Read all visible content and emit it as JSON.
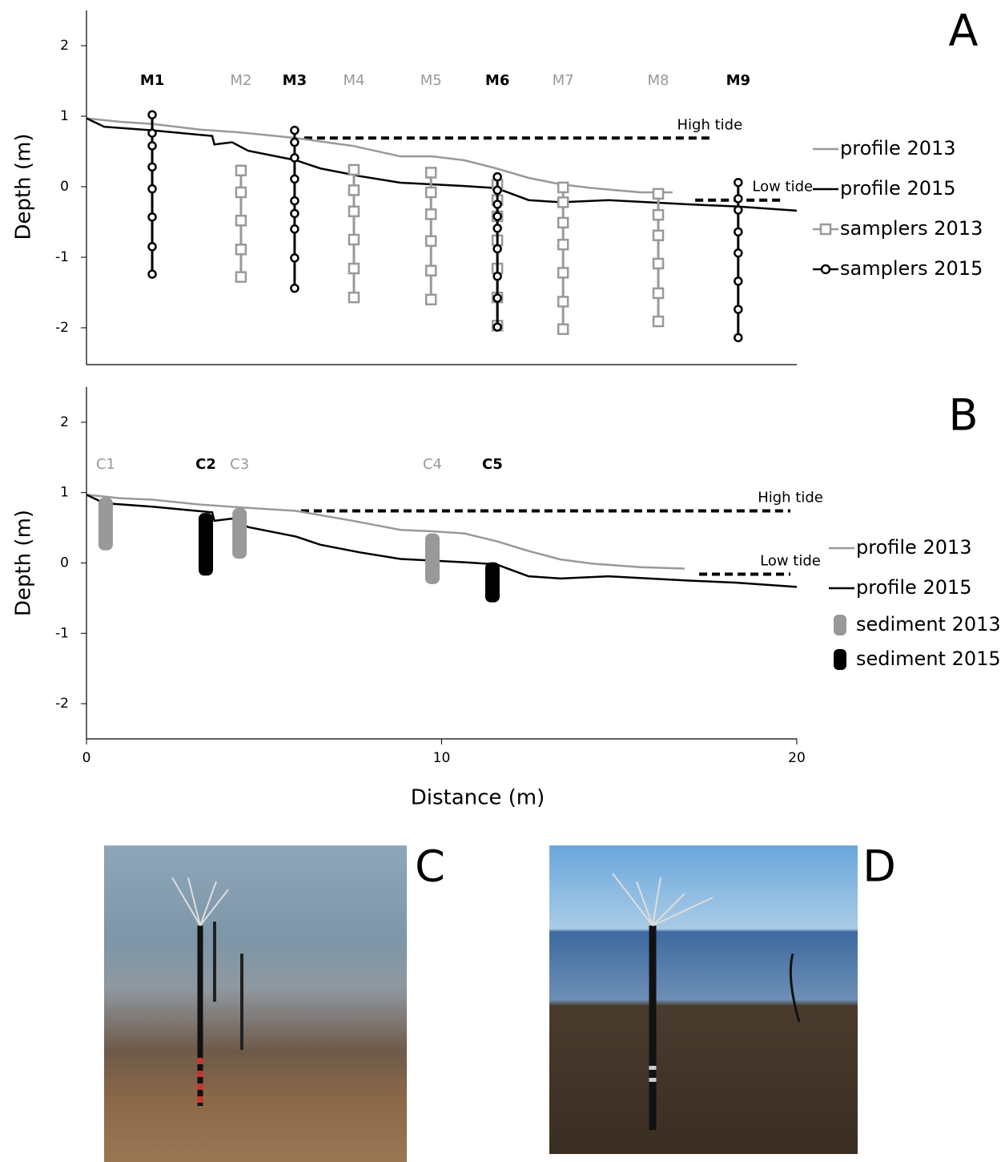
{
  "chart_data": [
    {
      "type": "line",
      "panel_label": "A",
      "ylabel": "Depth (m)",
      "xlim": [
        0,
        20
      ],
      "ylim": [
        -2.5,
        2.5
      ],
      "yticks": [
        -2,
        -1,
        0,
        1,
        2
      ],
      "stations": [
        {
          "label": "M1",
          "x": 1.85,
          "color": "#000000"
        },
        {
          "label": "M2",
          "x": 4.35,
          "color": "#999999"
        },
        {
          "label": "M3",
          "x": 5.86,
          "color": "#000000"
        },
        {
          "label": "M4",
          "x": 7.53,
          "color": "#999999"
        },
        {
          "label": "M5",
          "x": 9.7,
          "color": "#999999"
        },
        {
          "label": "M6",
          "x": 11.57,
          "color": "#000000"
        },
        {
          "label": "M7",
          "x": 13.42,
          "color": "#999999"
        },
        {
          "label": "M8",
          "x": 16.1,
          "color": "#999999"
        },
        {
          "label": "M9",
          "x": 18.35,
          "color": "#000000"
        }
      ],
      "tides": [
        {
          "label": "High tide",
          "x": [
            6.13,
            17.55
          ],
          "y": 0.69
        },
        {
          "label": "Low tide",
          "x": [
            17.14,
            19.6
          ],
          "y": -0.19
        }
      ],
      "series": [
        {
          "name": "profile 2013",
          "color": "#999999",
          "mark": "line",
          "x": [
            0,
            0.95,
            1.85,
            3.2,
            4.33,
            5.9,
            7.49,
            8.84,
            9.74,
            10.64,
            11.54,
            12.45,
            13.35,
            14.25,
            15.6,
            16.5
          ],
          "values": [
            0.97,
            0.92,
            0.89,
            0.81,
            0.77,
            0.69,
            0.58,
            0.43,
            0.43,
            0.375,
            0.26,
            0.125,
            0.034,
            -0.02,
            -0.08,
            -0.08
          ]
        },
        {
          "name": "profile 2015",
          "color": "#000000",
          "mark": "line",
          "x": [
            0,
            0.5,
            1.85,
            3.54,
            3.6,
            4.1,
            4.55,
            5.9,
            6.58,
            7.7,
            8.84,
            10.64,
            11.54,
            12.45,
            13.35,
            14.7,
            16.96,
            18.31,
            20
          ],
          "values": [
            0.97,
            0.85,
            0.8,
            0.72,
            0.6,
            0.63,
            0.51,
            0.375,
            0.26,
            0.15,
            0.057,
            0.01,
            -0.02,
            -0.19,
            -0.22,
            -0.19,
            -0.25,
            -0.28,
            -0.34
          ]
        },
        {
          "name": "samplers 2013",
          "color": "#999999",
          "mark": "square",
          "x": [
            4.35,
            4.35,
            4.35,
            4.35,
            4.35,
            7.53,
            7.53,
            7.53,
            7.53,
            7.53,
            7.53,
            9.7,
            9.7,
            9.7,
            9.7,
            9.7,
            9.7,
            11.57,
            11.57,
            11.57,
            11.57,
            11.57,
            11.57,
            11.57,
            13.42,
            13.42,
            13.42,
            13.42,
            13.42,
            13.42,
            13.42,
            16.1,
            16.1,
            16.1,
            16.1,
            16.1,
            16.1
          ],
          "values": [
            0.23,
            -0.08,
            -0.48,
            -0.89,
            -1.28,
            0.24,
            -0.05,
            -0.35,
            -0.75,
            -1.16,
            -1.57,
            0.2,
            -0.08,
            -0.39,
            -0.77,
            -1.19,
            -1.6,
            0.03,
            -0.19,
            -0.42,
            -0.76,
            -1.16,
            -1.57,
            -1.97,
            -0.01,
            -0.22,
            -0.51,
            -0.82,
            -1.22,
            -1.63,
            -2.02,
            -0.1,
            -0.4,
            -0.69,
            -1.09,
            -1.51,
            -1.91
          ]
        },
        {
          "name": "samplers 2015",
          "color": "#000000",
          "mark": "circle",
          "x": [
            1.85,
            1.85,
            1.85,
            1.85,
            1.85,
            1.85,
            1.85,
            1.85,
            5.86,
            5.86,
            5.86,
            5.86,
            5.86,
            5.86,
            5.86,
            5.86,
            5.86,
            11.57,
            11.57,
            11.57,
            11.57,
            11.57,
            11.57,
            11.57,
            11.57,
            11.57,
            18.35,
            18.35,
            18.35,
            18.35,
            18.35,
            18.35,
            18.35,
            18.35
          ],
          "values": [
            1.02,
            0.76,
            0.58,
            0.28,
            -0.03,
            -0.43,
            -0.85,
            -1.24,
            0.8,
            0.63,
            0.41,
            0.11,
            -0.2,
            -0.38,
            -0.6,
            -1.01,
            -1.44,
            0.14,
            -0.05,
            -0.25,
            -0.42,
            -0.59,
            -0.88,
            -1.27,
            -1.58,
            -1.99,
            0.06,
            -0.17,
            -0.33,
            -0.64,
            -0.94,
            -1.34,
            -1.74,
            -2.14
          ]
        }
      ]
    },
    {
      "type": "line",
      "panel_label": "B",
      "ylabel": "Depth (m)",
      "xlabel": "Distance (m)",
      "xlim": [
        0,
        20
      ],
      "ylim": [
        -2.5,
        2.5
      ],
      "xticks": [
        0,
        10,
        20
      ],
      "yticks": [
        -2,
        -1,
        0,
        1,
        2
      ],
      "stations": [
        {
          "label": "C1",
          "x": 0.54,
          "color": "#999999"
        },
        {
          "label": "C2",
          "x": 3.36,
          "color": "#000000"
        },
        {
          "label": "C3",
          "x": 4.31,
          "color": "#999999"
        },
        {
          "label": "C4",
          "x": 9.74,
          "color": "#999999"
        },
        {
          "label": "C5",
          "x": 11.43,
          "color": "#000000"
        }
      ],
      "tides": [
        {
          "label": "High tide",
          "x": [
            6.04,
            19.82
          ],
          "y": 0.74
        },
        {
          "label": "Low tide",
          "x": [
            17.25,
            19.82
          ],
          "y": -0.16
        }
      ],
      "series": [
        {
          "name": "profile 2013",
          "color": "#999999",
          "mark": "line",
          "x": [
            0,
            0.95,
            1.85,
            3.2,
            4.33,
            5.9,
            7.49,
            8.84,
            9.74,
            10.64,
            11.54,
            12.45,
            13.35,
            14.25,
            15.6,
            16.84
          ],
          "values": [
            0.97,
            0.92,
            0.9,
            0.83,
            0.79,
            0.74,
            0.6,
            0.47,
            0.45,
            0.42,
            0.31,
            0.17,
            0.05,
            -0.01,
            -0.06,
            -0.08
          ]
        },
        {
          "name": "profile 2015",
          "color": "#000000",
          "mark": "line",
          "x": [
            0,
            0.5,
            1.85,
            3.54,
            3.6,
            4.1,
            4.55,
            5.9,
            6.58,
            7.7,
            8.84,
            10.64,
            11.54,
            12.45,
            13.35,
            14.7,
            16.96,
            18.31,
            20
          ],
          "values": [
            0.97,
            0.85,
            0.8,
            0.72,
            0.6,
            0.63,
            0.51,
            0.375,
            0.26,
            0.15,
            0.057,
            0.01,
            -0.02,
            -0.19,
            -0.22,
            -0.19,
            -0.25,
            -0.28,
            -0.34
          ]
        },
        {
          "name": "sediment 2013",
          "color": "#999999",
          "mark": "core",
          "x": [
            0.54,
            4.31,
            9.74
          ],
          "top": [
            0.93,
            0.78,
            0.42
          ],
          "bottom": [
            0.18,
            0.06,
            -0.3
          ]
        },
        {
          "name": "sediment 2015",
          "color": "#000000",
          "mark": "core",
          "x": [
            3.36,
            11.43
          ],
          "top": [
            0.71,
            0.01
          ],
          "bottom": [
            -0.18,
            -0.56
          ]
        }
      ]
    }
  ],
  "photos": [
    {
      "label": "C"
    },
    {
      "label": "D"
    }
  ]
}
